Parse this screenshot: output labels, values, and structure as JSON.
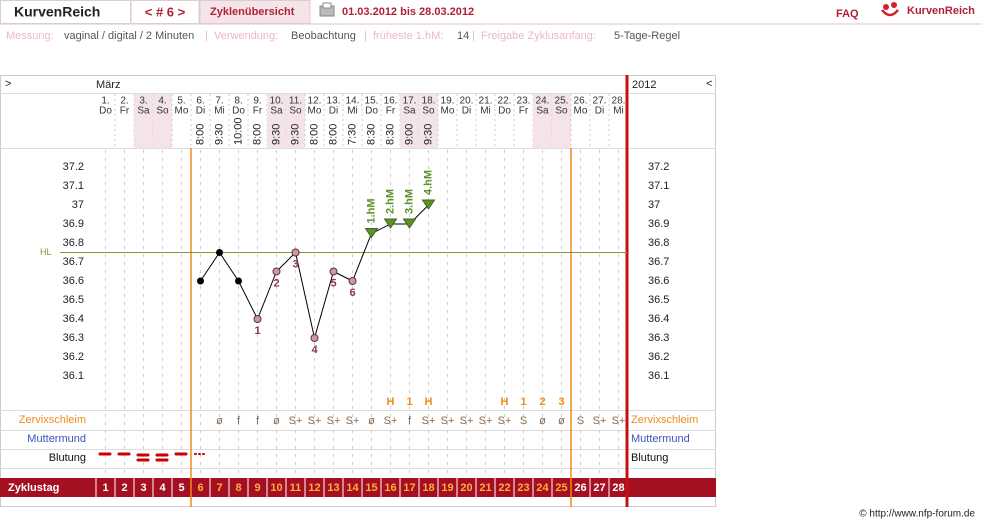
{
  "header": {
    "logo": "KurvenReich",
    "nav": "< # 6 >",
    "overview": "Zyklenübersicht",
    "period": "01.03.2012 bis 28.03.2012",
    "faq": "FAQ",
    "brand": "KurvenReich"
  },
  "info": [
    {
      "label": "Messung:",
      "value": "vaginal / digital / 2 Minuten"
    },
    {
      "label": "Verwendung:",
      "value": "Beobachtung"
    },
    {
      "label": "früheste 1.hM:",
      "value": "14"
    },
    {
      "label": "Freigabe Zyklusanfang:",
      "value": "5-Tage-Regel"
    }
  ],
  "separator": "|",
  "chart_data": {
    "type": "line",
    "nav_left": ">",
    "nav_right": "<",
    "month": "März",
    "year": "2012",
    "days": [
      "1.",
      "2.",
      "3.",
      "4.",
      "5.",
      "6.",
      "7.",
      "8.",
      "9.",
      "10.",
      "11.",
      "12.",
      "13.",
      "14.",
      "15.",
      "16.",
      "17.",
      "18.",
      "19.",
      "20.",
      "21.",
      "22.",
      "23.",
      "24.",
      "25.",
      "26.",
      "27.",
      "28."
    ],
    "weekdays": [
      "Do",
      "Fr",
      "Sa",
      "So",
      "Mo",
      "Di",
      "Mi",
      "Do",
      "Fr",
      "Sa",
      "So",
      "Mo",
      "Di",
      "Mi",
      "Do",
      "Fr",
      "Sa",
      "So",
      "Mo",
      "Di",
      "Mi",
      "Do",
      "Fr",
      "Sa",
      "So",
      "Mo",
      "Di",
      "Mi"
    ],
    "times": [
      null,
      null,
      null,
      null,
      null,
      "8:00",
      "9:30",
      "10:00",
      "8:00",
      "9:30",
      "9:30",
      "8:00",
      "8:00",
      "7:30",
      "8:30",
      "8:30",
      "9:00",
      "9:30",
      null,
      null,
      null,
      null,
      null,
      null,
      null,
      null,
      null,
      null
    ],
    "values": [
      null,
      null,
      null,
      null,
      null,
      36.6,
      36.75,
      36.6,
      36.4,
      36.65,
      36.75,
      36.3,
      36.65,
      36.6,
      36.85,
      36.9,
      36.9,
      37.0,
      null,
      null,
      null,
      null,
      null,
      null,
      null,
      null,
      null,
      null
    ],
    "point_labels": [
      null,
      null,
      null,
      null,
      null,
      null,
      null,
      null,
      "1",
      "2",
      "3",
      "4",
      "5",
      "6",
      "1.hM",
      "2.hM",
      "3.hM",
      "4.hM",
      null,
      null,
      null,
      null,
      null,
      null,
      null,
      null,
      null,
      null
    ],
    "ylim": [
      36.0,
      37.3
    ],
    "yticks": [
      36.1,
      36.2,
      36.3,
      36.4,
      36.5,
      36.6,
      36.7,
      36.8,
      36.9,
      37,
      37.1,
      37.2
    ],
    "hl_value": 36.75,
    "hl_label": "HL",
    "peaks": [
      null,
      null,
      null,
      null,
      null,
      null,
      null,
      null,
      null,
      null,
      null,
      null,
      null,
      null,
      null,
      "H",
      "1",
      "H",
      null,
      null,
      null,
      "H",
      "1",
      "2",
      "3",
      null,
      null,
      null
    ],
    "mucus": [
      null,
      null,
      null,
      null,
      null,
      null,
      "ø",
      "f",
      "f",
      "ø",
      "S+",
      "S+",
      "S+",
      "S+",
      "ø",
      "S+",
      "f",
      "S+",
      "S+",
      "S+",
      "S+",
      "S+",
      "S",
      "ø",
      "ø",
      "S",
      "S+",
      "S+"
    ],
    "row_labels": [
      "Zervixschleim",
      "Muttermund",
      "Blutung"
    ],
    "cycle_label": "Zyklustag",
    "cycle_days": [
      1,
      2,
      3,
      4,
      5,
      6,
      7,
      8,
      9,
      10,
      11,
      12,
      13,
      14,
      15,
      16,
      17,
      18,
      19,
      20,
      21,
      22,
      23,
      24,
      25,
      26,
      27,
      28
    ],
    "fertile_range": [
      6,
      25
    ]
  },
  "footer": "© http://www.nfp-forum.de"
}
